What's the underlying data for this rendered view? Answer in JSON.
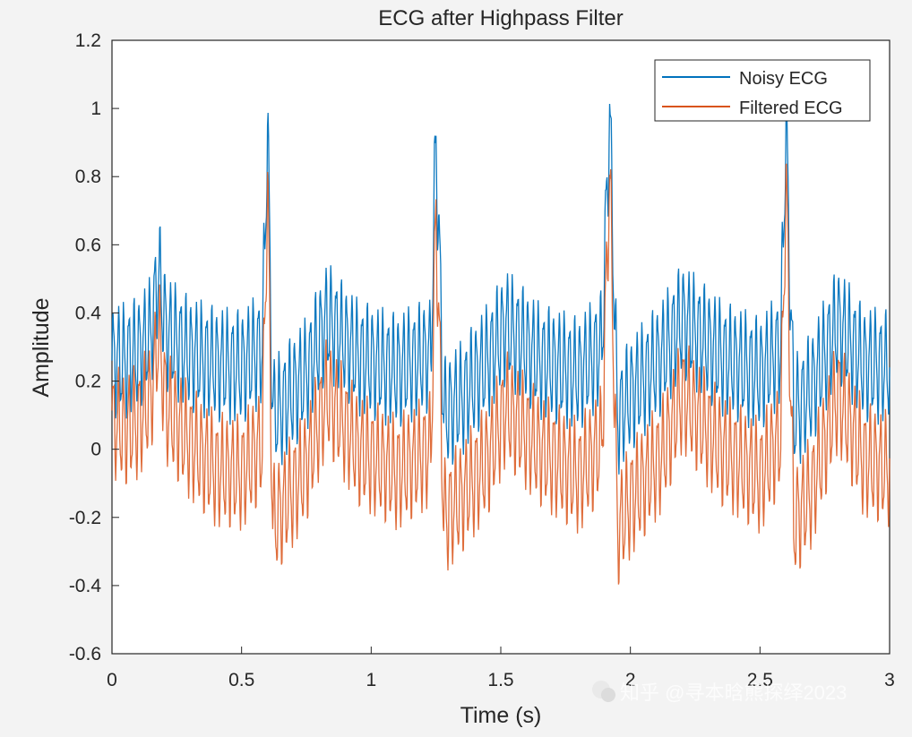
{
  "chart_data": {
    "type": "line",
    "title": "ECG after Highpass Filter",
    "xlabel": "Time (s)",
    "ylabel": "Amplitude",
    "xlim": [
      0,
      3
    ],
    "ylim": [
      -0.6,
      1.2
    ],
    "xticks": [
      0,
      0.5,
      1,
      1.5,
      2,
      2.5,
      3
    ],
    "xtick_labels": [
      "0",
      "0.5",
      "1",
      "1.5",
      "2",
      "2.5",
      "3"
    ],
    "yticks": [
      -0.6,
      -0.4,
      -0.2,
      0,
      0.2,
      0.4,
      0.6,
      0.8,
      1,
      1.2
    ],
    "ytick_labels": [
      "-0.6",
      "-0.4",
      "-0.2",
      "0",
      "0.2",
      "0.4",
      "0.6",
      "0.8",
      "1",
      "1.2"
    ],
    "grid": false,
    "legend_position": "top-right",
    "series": [
      {
        "name": "Noisy ECG",
        "color": "#0072bd",
        "x": [
          0,
          0.05,
          0.1,
          0.15,
          0.18,
          0.21,
          0.3,
          0.4,
          0.5,
          0.58,
          0.6,
          0.62,
          0.65,
          0.75,
          0.83,
          0.95,
          1.1,
          1.23,
          1.25,
          1.28,
          1.35,
          1.45,
          1.52,
          1.65,
          1.8,
          1.89,
          1.92,
          1.95,
          2.0,
          2.12,
          2.2,
          2.35,
          2.5,
          2.58,
          2.6,
          2.63,
          2.7,
          2.8,
          2.9,
          3.0
        ],
        "y": [
          0.26,
          0.26,
          0.28,
          0.34,
          0.52,
          0.34,
          0.28,
          0.25,
          0.24,
          0.3,
          0.95,
          0.1,
          0.12,
          0.22,
          0.38,
          0.27,
          0.23,
          0.28,
          0.92,
          0.1,
          0.15,
          0.26,
          0.36,
          0.26,
          0.22,
          0.3,
          0.99,
          0.09,
          0.16,
          0.27,
          0.38,
          0.27,
          0.22,
          0.3,
          0.96,
          0.1,
          0.18,
          0.37,
          0.25,
          0.24
        ]
      },
      {
        "name": "Filtered ECG",
        "color": "#d95319",
        "x": [
          0,
          0.05,
          0.1,
          0.15,
          0.18,
          0.21,
          0.3,
          0.4,
          0.5,
          0.58,
          0.6,
          0.62,
          0.65,
          0.75,
          0.83,
          0.95,
          1.1,
          1.23,
          1.25,
          1.28,
          1.35,
          1.45,
          1.52,
          1.65,
          1.8,
          1.89,
          1.92,
          1.95,
          2.0,
          2.12,
          2.2,
          2.35,
          2.5,
          2.58,
          2.6,
          2.63,
          2.7,
          2.8,
          2.9,
          3.0
        ],
        "y": [
          0.08,
          0.06,
          0.08,
          0.15,
          0.34,
          0.12,
          0.02,
          -0.06,
          -0.07,
          0.02,
          0.78,
          -0.22,
          -0.18,
          -0.05,
          0.16,
          0.0,
          -0.07,
          0.0,
          0.7,
          -0.2,
          -0.14,
          -0.03,
          0.12,
          0.0,
          -0.08,
          0.02,
          0.82,
          -0.24,
          -0.15,
          -0.02,
          0.16,
          0.0,
          -0.08,
          0.04,
          0.8,
          -0.22,
          -0.12,
          0.16,
          -0.03,
          -0.06
        ]
      }
    ]
  },
  "watermark": {
    "text": "知乎 @寻本晗熊探绎2023",
    "icon": "wechat-icon"
  }
}
